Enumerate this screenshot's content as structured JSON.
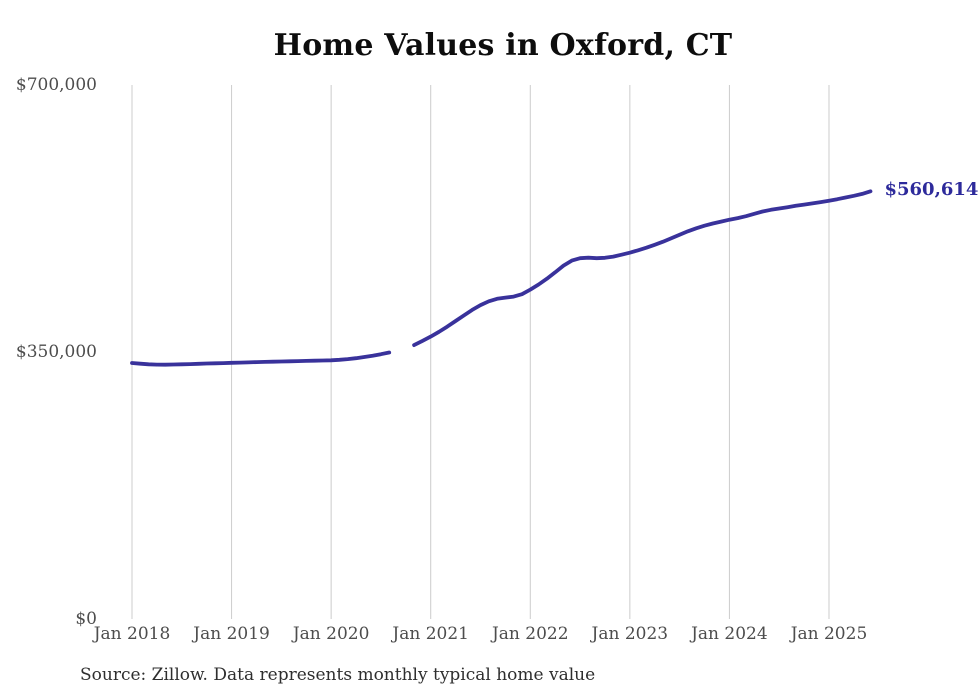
{
  "chart_data": {
    "type": "line",
    "title": "Home Values in Oxford, CT",
    "source_note": "Source: Zillow. Data represents monthly typical home value",
    "end_label": "$560,614",
    "end_value": 560614,
    "colors": {
      "line": "#39329b",
      "end_label": "#2d2a9b",
      "grid": "#cccccc",
      "axis_text": "#4d4d4d",
      "title_text": "#0d0d0d",
      "source_text": "#2e2e2e",
      "background": "#ffffff"
    },
    "ylim": [
      0,
      700000
    ],
    "y_ticks": [
      {
        "value": 0,
        "label": "$0"
      },
      {
        "value": 350000,
        "label": "$350,000"
      },
      {
        "value": 700000,
        "label": "$700,000"
      }
    ],
    "x_tick_labels": [
      "Jan 2018",
      "Jan 2019",
      "Jan 2020",
      "Jan 2021",
      "Jan 2022",
      "Jan 2023",
      "Jan 2024",
      "Jan 2025"
    ],
    "grid": "vertical-only",
    "legend": "none",
    "series": [
      {
        "name": "Monthly typical home value",
        "start_month": "2018-01",
        "end_month": "2025-06",
        "frequency": "monthly",
        "missing_months": [
          "2020-09",
          "2020-10"
        ],
        "values": [
          335600,
          334600,
          333900,
          333500,
          333400,
          333600,
          333900,
          334200,
          334500,
          334900,
          335200,
          335500,
          335800,
          336100,
          336400,
          336700,
          337000,
          337300,
          337600,
          337800,
          338100,
          338300,
          338600,
          338800,
          339100,
          339800,
          340700,
          341900,
          343400,
          345100,
          347100,
          349300,
          null,
          null,
          359000,
          364500,
          370200,
          376500,
          383300,
          390600,
          398000,
          405200,
          411500,
          416500,
          419800,
          421300,
          422600,
          425800,
          431800,
          438500,
          446100,
          454500,
          463200,
          469800,
          472900,
          473600,
          472900,
          473500,
          475000,
          477500,
          480200,
          483300,
          486700,
          490500,
          494600,
          499000,
          503700,
          508200,
          512100,
          515500,
          518500,
          521000,
          523400,
          525500,
          528000,
          531100,
          534200,
          536400,
          538100,
          539800,
          541600,
          543200,
          544800,
          546500,
          548300,
          550300,
          552500,
          554800,
          557300,
          560614
        ]
      }
    ]
  }
}
